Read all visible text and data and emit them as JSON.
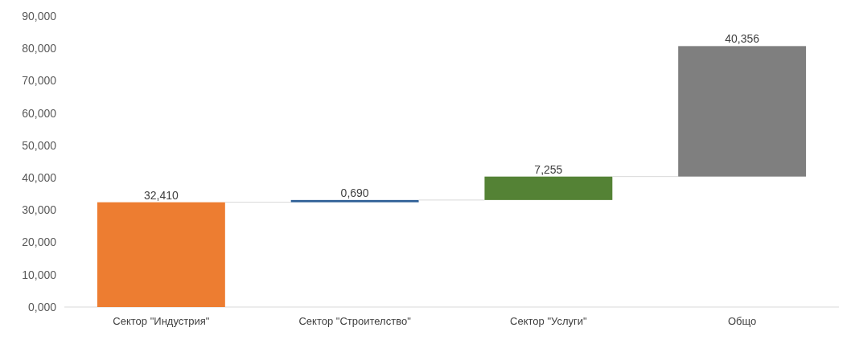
{
  "chart_data": {
    "type": "bar",
    "categories": [
      "Сектор \"Индустрия\"",
      "Сектор \"Строителство\"",
      "Сектор \"Услуги\"",
      "Общо"
    ],
    "values": [
      32.41,
      0.69,
      7.255,
      40.356
    ],
    "base": [
      0,
      32.41,
      33.1,
      40.356
    ],
    "colors": [
      "#ed7d31",
      "#2e5f96",
      "#548235",
      "#7f7f7f"
    ],
    "value_labels": [
      "32,410",
      "0,690",
      "7,255",
      "40,356"
    ],
    "ylim": [
      0,
      90
    ],
    "yticks": [
      {
        "value": 0,
        "label": "0,000"
      },
      {
        "value": 10,
        "label": "10,000"
      },
      {
        "value": 20,
        "label": "20,000"
      },
      {
        "value": 30,
        "label": "30,000"
      },
      {
        "value": 40,
        "label": "40,000"
      },
      {
        "value": 50,
        "label": "50,000"
      },
      {
        "value": 60,
        "label": "60,000"
      },
      {
        "value": 70,
        "label": "70,000"
      },
      {
        "value": 80,
        "label": "80,000"
      },
      {
        "value": 90,
        "label": "90,000"
      }
    ],
    "grid": false
  }
}
